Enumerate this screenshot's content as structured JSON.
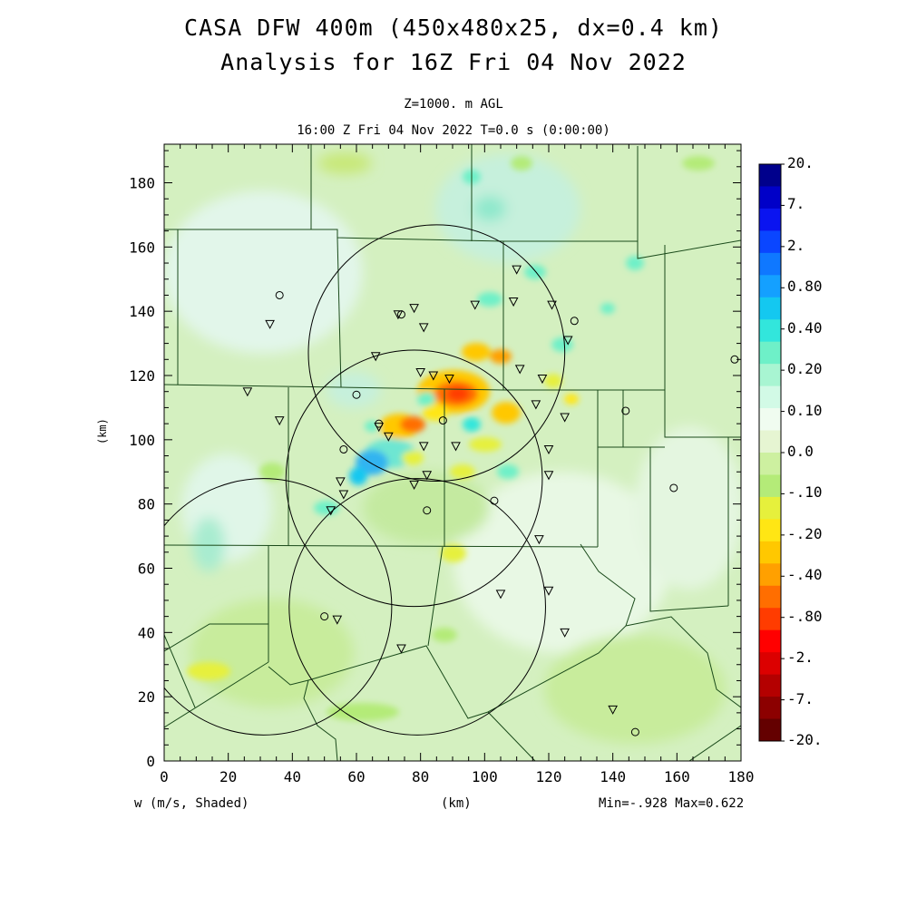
{
  "title": {
    "line1": "CASA DFW 400m (450x480x25, dx=0.4 km)",
    "line2": "Analysis for 16Z Fri 04 Nov 2022"
  },
  "subtitle": {
    "level": "Z=1000. m AGL",
    "time": "16:00 Z Fri 04 Nov 2022   T=0.0 s (0:00:00)"
  },
  "axes": {
    "x_label": "(km)",
    "y_label": "(km)",
    "x_range": [
      0,
      180
    ],
    "y_range": [
      0,
      192
    ],
    "x_ticks": [
      "0",
      "20",
      "40",
      "60",
      "80",
      "100",
      "120",
      "140",
      "160",
      "180"
    ],
    "y_ticks": [
      "0",
      "20",
      "40",
      "60",
      "80",
      "100",
      "120",
      "140",
      "160",
      "180"
    ]
  },
  "footer": {
    "field": "w (m/s, Shaded)",
    "units": "(km)",
    "minmax": "Min=-.928 Max=0.622"
  },
  "colorbar": {
    "labels": [
      "20.",
      "7.",
      "2.",
      "0.80",
      "0.40",
      "0.20",
      "0.10",
      "0.0",
      "-.10",
      "-.20",
      "-.40",
      "-.80",
      "-2.",
      "-7.",
      "-20."
    ],
    "colors": [
      "#00008c",
      "#0000c8",
      "#0a14f0",
      "#0a46ff",
      "#0f78ff",
      "#14a0ff",
      "#14c8f0",
      "#32e6dc",
      "#6ef0c8",
      "#a8f5d2",
      "#d2fae6",
      "#f0fcf0",
      "#e6f5d2",
      "#cdf0a0",
      "#b4eb78",
      "#e6f03c",
      "#ffe614",
      "#ffc800",
      "#ffa000",
      "#ff6e00",
      "#ff3c00",
      "#ff0000",
      "#dc0000",
      "#b40000",
      "#8c0000",
      "#640000"
    ],
    "legend": "vertical color bar, right side"
  },
  "map_background": "#d4f0c0",
  "circle_color": "#000000",
  "circles": [
    {
      "cx": 85,
      "cy": 127,
      "r": 40
    },
    {
      "cx": 78,
      "cy": 88,
      "r": 40
    },
    {
      "cx": 79,
      "cy": 48,
      "r": 40
    },
    {
      "cx": 31,
      "cy": 48,
      "r": 40
    }
  ],
  "markers": [
    {
      "type": "triangle",
      "x": 110,
      "y": 153
    },
    {
      "type": "triangle",
      "x": 121,
      "y": 142
    },
    {
      "type": "triangle",
      "x": 109,
      "y": 143
    },
    {
      "type": "triangle",
      "x": 97,
      "y": 142
    },
    {
      "type": "triangle",
      "x": 78,
      "y": 141
    },
    {
      "type": "triangle",
      "x": 81,
      "y": 135
    },
    {
      "type": "triangle",
      "x": 73,
      "y": 139
    },
    {
      "type": "triangle",
      "x": 66,
      "y": 126
    },
    {
      "type": "triangle",
      "x": 80,
      "y": 121
    },
    {
      "type": "triangle",
      "x": 84,
      "y": 120
    },
    {
      "type": "triangle",
      "x": 89,
      "y": 119
    },
    {
      "type": "triangle",
      "x": 111,
      "y": 122
    },
    {
      "type": "triangle",
      "x": 118,
      "y": 119
    },
    {
      "type": "triangle",
      "x": 116,
      "y": 111
    },
    {
      "type": "triangle",
      "x": 126,
      "y": 131
    },
    {
      "type": "triangle",
      "x": 125,
      "y": 107
    },
    {
      "type": "triangle",
      "x": 26,
      "y": 115
    },
    {
      "type": "triangle",
      "x": 36,
      "y": 106
    },
    {
      "type": "triangle",
      "x": 33,
      "y": 136
    },
    {
      "type": "triangle",
      "x": 67,
      "y": 104
    },
    {
      "type": "triangle",
      "x": 70,
      "y": 101
    },
    {
      "type": "triangle",
      "x": 81,
      "y": 98
    },
    {
      "type": "triangle",
      "x": 91,
      "y": 98
    },
    {
      "type": "triangle",
      "x": 120,
      "y": 97
    },
    {
      "type": "triangle",
      "x": 120,
      "y": 89
    },
    {
      "type": "triangle",
      "x": 55,
      "y": 87
    },
    {
      "type": "triangle",
      "x": 56,
      "y": 83
    },
    {
      "type": "triangle",
      "x": 52,
      "y": 78
    },
    {
      "type": "triangle",
      "x": 78,
      "y": 86
    },
    {
      "type": "triangle",
      "x": 82,
      "y": 89
    },
    {
      "type": "triangle",
      "x": 117,
      "y": 69
    },
    {
      "type": "triangle",
      "x": 120,
      "y": 53
    },
    {
      "type": "triangle",
      "x": 105,
      "y": 52
    },
    {
      "type": "triangle",
      "x": 54,
      "y": 44
    },
    {
      "type": "triangle",
      "x": 125,
      "y": 40
    },
    {
      "type": "triangle",
      "x": 74,
      "y": 35
    },
    {
      "type": "triangle",
      "x": 140,
      "y": 16
    },
    {
      "type": "circle",
      "x": 36,
      "y": 145
    },
    {
      "type": "circle",
      "x": 74,
      "y": 139
    },
    {
      "type": "circle",
      "x": 128,
      "y": 137
    },
    {
      "type": "circle",
      "x": 60,
      "y": 114
    },
    {
      "type": "circle",
      "x": 87,
      "y": 106
    },
    {
      "type": "circle",
      "x": 67,
      "y": 105
    },
    {
      "type": "circle",
      "x": 56,
      "y": 97
    },
    {
      "type": "circle",
      "x": 144,
      "y": 109
    },
    {
      "type": "circle",
      "x": 178,
      "y": 125
    },
    {
      "type": "circle",
      "x": 103,
      "y": 81
    },
    {
      "type": "circle",
      "x": 82,
      "y": 78
    },
    {
      "type": "circle",
      "x": 159,
      "y": 85
    },
    {
      "type": "circle",
      "x": 50,
      "y": 45
    },
    {
      "type": "circle",
      "x": 147,
      "y": 9
    }
  ]
}
